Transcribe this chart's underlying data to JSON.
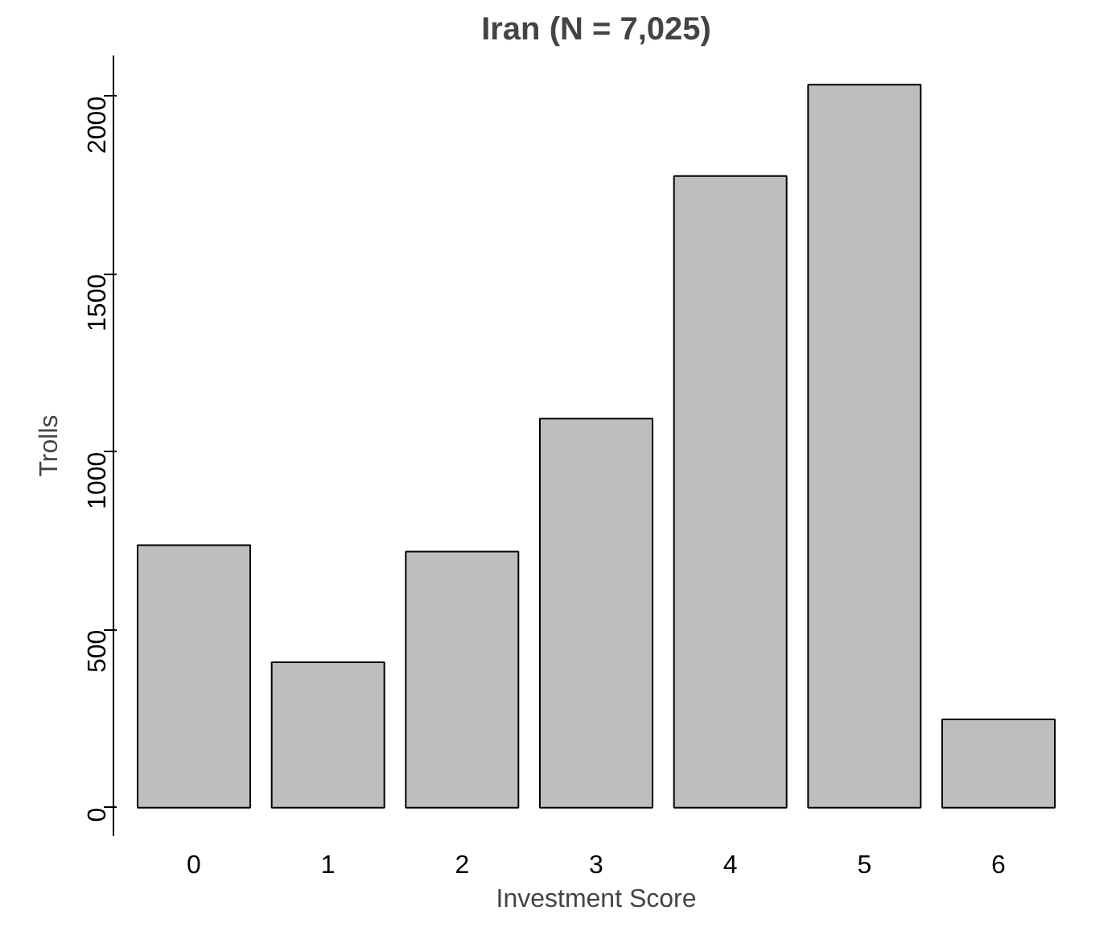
{
  "chart_data": {
    "type": "bar",
    "title": "Iran (N = 7,025)",
    "xlabel": "Investment Score",
    "ylabel": "Trolls",
    "categories": [
      "0",
      "1",
      "2",
      "3",
      "4",
      "5",
      "6"
    ],
    "values": [
      738,
      409,
      720,
      1094,
      1776,
      2033,
      248
    ],
    "color": "#bebebe",
    "ylim": [
      -80,
      2115
    ],
    "yticks": [
      0,
      500,
      1000,
      1500,
      2000
    ],
    "grid": false
  }
}
